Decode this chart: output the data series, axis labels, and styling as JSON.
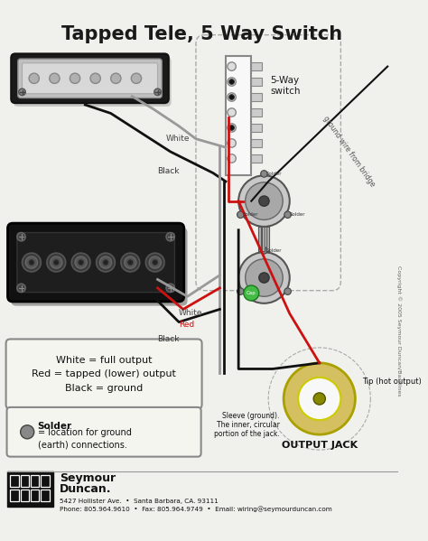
{
  "title": "Tapped Tele, 5 Way Switch",
  "bg_color": "#f0f0ec",
  "title_color": "#1a1a1a",
  "title_fontsize": 15,
  "footer_line1": "5427 Hollister Ave.  •  Santa Barbara, CA. 93111",
  "footer_line2": "Phone: 805.964.9610  •  Fax: 805.964.9749  •  Email: wiring@seymourduncan.com",
  "legend_text": "White = full output\nRed = tapped (lower) output\nBlack = ground",
  "solder_legend_title": "Solder",
  "solder_legend_body": "= location for ground\n(earth) connections.",
  "switch_label": "5-Way\nswitch",
  "output_jack_label": "OUTPUT JACK",
  "tip_label": "Tip (hot output)",
  "sleeve_label": "Sleeve (ground).\nThe inner, circular\nportion of the jack.",
  "ground_wire_label": "ground wire from bridge",
  "copyright": "Copyright © 2005 Seymour Duncan/Basslines",
  "wire_white": "#c8c8c8",
  "wire_black": "#111111",
  "wire_red": "#cc1111",
  "wire_gray": "#999999",
  "solder_color": "#888888",
  "green_cap": "#44bb44",
  "pot_outer": "#c8c8c8",
  "pot_mid": "#a8a8a8",
  "pot_dark": "#444444",
  "jack_gold": "#d4c060",
  "jack_white": "#f8f8f8"
}
